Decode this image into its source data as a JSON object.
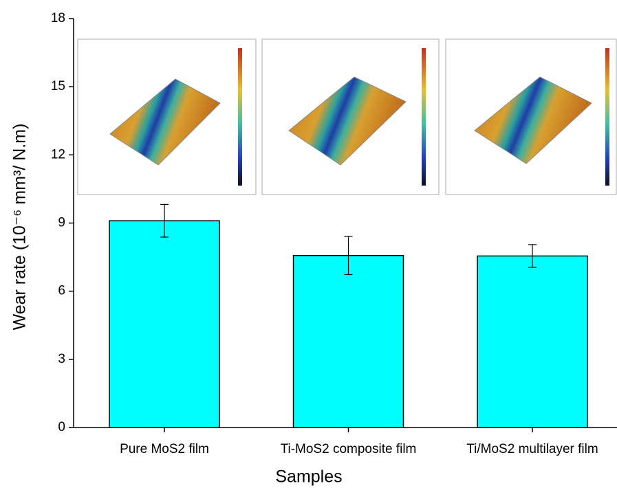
{
  "chart_data": {
    "type": "bar",
    "xlabel": "Samples",
    "ylabel": "Wear rate (10⁻⁶ mm³/ N.m)",
    "categories": [
      "Pure MoS2 film",
      "Ti-MoS2 composite film",
      "Ti/MoS2 multilayer film"
    ],
    "values": [
      9.1,
      7.57,
      7.55
    ],
    "errors": [
      0.72,
      0.84,
      0.5
    ],
    "color": "#00ffff",
    "ylim": [
      0,
      18
    ],
    "yticks": [
      0,
      3,
      6,
      9,
      12,
      15,
      18
    ],
    "grid": false
  }
}
